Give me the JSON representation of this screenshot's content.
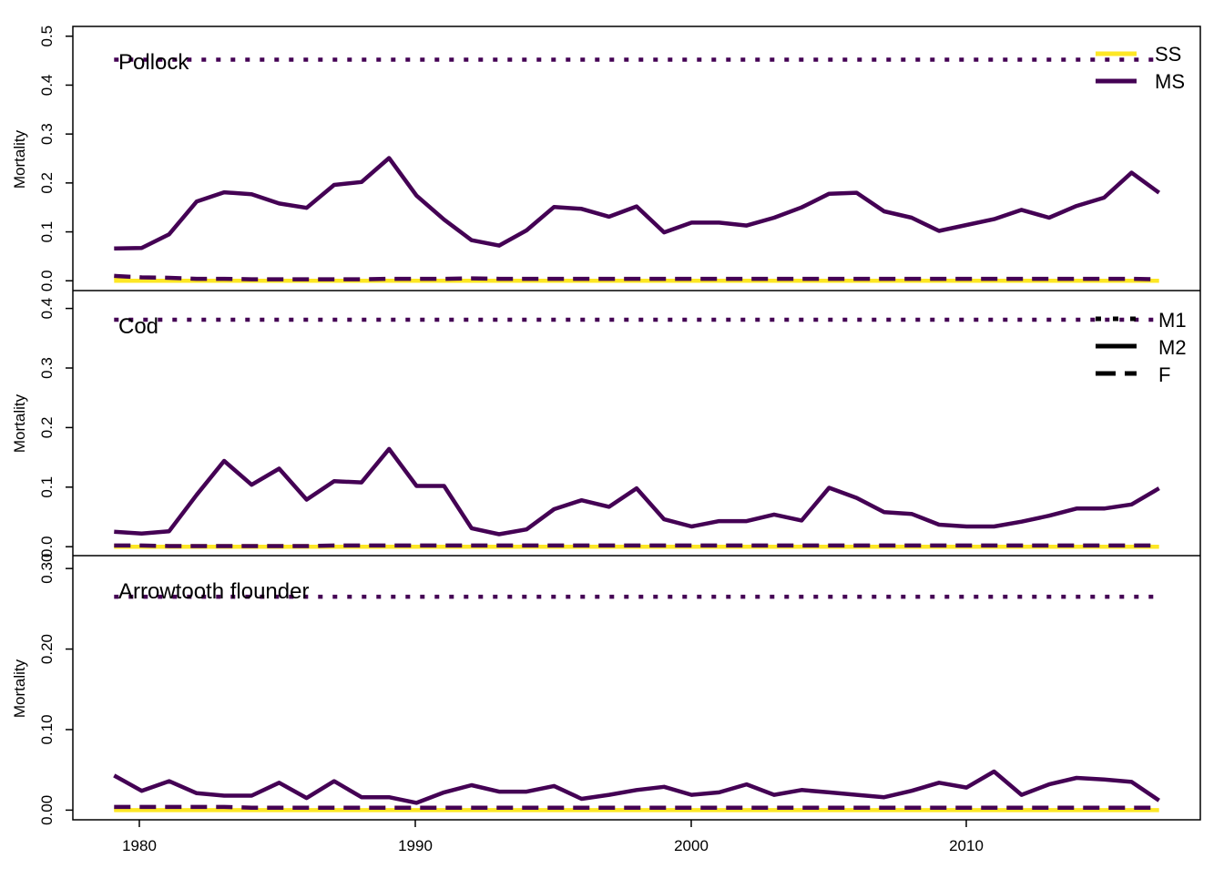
{
  "colors": {
    "ss": "#FDE725",
    "ms": "#440154",
    "frame": "#000000"
  },
  "legend_years": [
    "1980",
    "1990",
    "2000",
    "2010"
  ],
  "legends": [
    {
      "entries": [
        {
          "label": "SS",
          "style": "solid",
          "color": "#FDE725"
        },
        {
          "label": "MS",
          "style": "solid",
          "color": "#440154"
        }
      ]
    },
    {
      "entries": [
        {
          "label": "M1",
          "style": "dotted",
          "color": "#000000"
        },
        {
          "label": "M2",
          "style": "solid",
          "color": "#000000"
        },
        {
          "label": "F",
          "style": "dashed",
          "color": "#000000"
        }
      ]
    }
  ],
  "chart_data": [
    {
      "type": "line",
      "title": "Pollock",
      "ylabel": "Mortality",
      "xlim": [
        1977.5,
        2018.5
      ],
      "ylim": [
        -0.02,
        0.52
      ],
      "yticks": [
        0.0,
        0.1,
        0.2,
        0.3,
        0.4,
        0.5
      ],
      "ytick_labels": [
        "0.0",
        "0.1",
        "0.2",
        "0.3",
        "0.4",
        "0.5"
      ],
      "xticks": [
        1980,
        1990,
        2000,
        2010
      ],
      "show_xticks": false,
      "x": [
        1979,
        1980,
        1981,
        1982,
        1983,
        1984,
        1985,
        1986,
        1987,
        1988,
        1989,
        1990,
        1991,
        1992,
        1993,
        1994,
        1995,
        1996,
        1997,
        1998,
        1999,
        2000,
        2001,
        2002,
        2003,
        2004,
        2005,
        2006,
        2007,
        2008,
        2009,
        2010,
        2011,
        2012,
        2013,
        2014,
        2015,
        2016,
        2017
      ],
      "series": [
        {
          "model": "MS",
          "component": "M1",
          "values": [
            0.452,
            0.452,
            0.452,
            0.452,
            0.452,
            0.452,
            0.452,
            0.452,
            0.452,
            0.452,
            0.452,
            0.452,
            0.452,
            0.452,
            0.452,
            0.452,
            0.452,
            0.452,
            0.452,
            0.452,
            0.452,
            0.452,
            0.452,
            0.452,
            0.452,
            0.452,
            0.452,
            0.452,
            0.452,
            0.452,
            0.452,
            0.452,
            0.452,
            0.452,
            0.452,
            0.452,
            0.452,
            0.452,
            0.452
          ]
        },
        {
          "model": "SS",
          "component": "M2",
          "values": [
            0,
            0,
            0,
            0,
            0,
            0,
            0,
            0,
            0,
            0,
            0,
            0,
            0,
            0,
            0,
            0,
            0,
            0,
            0,
            0,
            0,
            0,
            0,
            0,
            0,
            0,
            0,
            0,
            0,
            0,
            0,
            0,
            0,
            0,
            0,
            0,
            0,
            0,
            0
          ]
        },
        {
          "model": "SS",
          "component": "F",
          "values": [
            0.006,
            0.004,
            0.003,
            0.002,
            0.002,
            0.001,
            0.001,
            0.001,
            0.001,
            0.001,
            0.002,
            0.002,
            0.002,
            0.003,
            0.002,
            0.002,
            0.002,
            0.002,
            0.002,
            0.002,
            0.002,
            0.002,
            0.002,
            0.002,
            0.002,
            0.002,
            0.002,
            0.002,
            0.002,
            0.002,
            0.002,
            0.002,
            0.002,
            0.002,
            0.002,
            0.002,
            0.002,
            0.002,
            0.002
          ]
        },
        {
          "model": "MS",
          "component": "M2",
          "values": [
            0.066,
            0.067,
            0.095,
            0.162,
            0.181,
            0.177,
            0.158,
            0.149,
            0.196,
            0.202,
            0.251,
            0.174,
            0.125,
            0.083,
            0.072,
            0.103,
            0.151,
            0.147,
            0.131,
            0.152,
            0.099,
            0.119,
            0.119,
            0.113,
            0.129,
            0.15,
            0.178,
            0.18,
            0.142,
            0.129,
            0.102,
            0.114,
            0.126,
            0.145,
            0.129,
            0.153,
            0.17,
            0.221,
            0.18
          ]
        },
        {
          "model": "MS",
          "component": "F",
          "values": [
            0.01,
            0.007,
            0.006,
            0.004,
            0.004,
            0.003,
            0.003,
            0.003,
            0.003,
            0.003,
            0.004,
            0.004,
            0.004,
            0.005,
            0.004,
            0.004,
            0.004,
            0.004,
            0.004,
            0.004,
            0.004,
            0.004,
            0.004,
            0.004,
            0.004,
            0.004,
            0.004,
            0.004,
            0.004,
            0.004,
            0.004,
            0.004,
            0.004,
            0.004,
            0.004,
            0.004,
            0.004,
            0.004,
            0.003
          ]
        }
      ]
    },
    {
      "type": "line",
      "title": "Cod",
      "ylabel": "Mortality",
      "xlim": [
        1977.5,
        2018.5
      ],
      "ylim": [
        -0.015,
        0.43
      ],
      "yticks": [
        0.0,
        0.1,
        0.2,
        0.3,
        0.4
      ],
      "ytick_labels": [
        "0.0",
        "0.1",
        "0.2",
        "0.3",
        "0.4"
      ],
      "xticks": [
        1980,
        1990,
        2000,
        2010
      ],
      "show_xticks": false,
      "x": [
        1979,
        1980,
        1981,
        1982,
        1983,
        1984,
        1985,
        1986,
        1987,
        1988,
        1989,
        1990,
        1991,
        1992,
        1993,
        1994,
        1995,
        1996,
        1997,
        1998,
        1999,
        2000,
        2001,
        2002,
        2003,
        2004,
        2005,
        2006,
        2007,
        2008,
        2009,
        2010,
        2011,
        2012,
        2013,
        2014,
        2015,
        2016,
        2017
      ],
      "series": [
        {
          "model": "MS",
          "component": "M1",
          "values": [
            0.381,
            0.381,
            0.381,
            0.381,
            0.381,
            0.381,
            0.381,
            0.381,
            0.381,
            0.381,
            0.381,
            0.381,
            0.381,
            0.381,
            0.381,
            0.381,
            0.381,
            0.381,
            0.381,
            0.381,
            0.381,
            0.381,
            0.381,
            0.381,
            0.381,
            0.381,
            0.381,
            0.381,
            0.381,
            0.381,
            0.381,
            0.381,
            0.381,
            0.381,
            0.381,
            0.381,
            0.381,
            0.381,
            0.381
          ]
        },
        {
          "model": "SS",
          "component": "M2",
          "values": [
            0,
            0,
            0,
            0,
            0,
            0,
            0,
            0,
            0,
            0,
            0,
            0,
            0,
            0,
            0,
            0,
            0,
            0,
            0,
            0,
            0,
            0,
            0,
            0,
            0,
            0,
            0,
            0,
            0,
            0,
            0,
            0,
            0,
            0,
            0,
            0,
            0,
            0,
            0
          ]
        },
        {
          "model": "SS",
          "component": "F",
          "values": [
            0.001,
            0.001,
            0.001,
            0.001,
            0.001,
            0.001,
            0.001,
            0.001,
            0.001,
            0.001,
            0.001,
            0.001,
            0.001,
            0.001,
            0.001,
            0.001,
            0.001,
            0.001,
            0.001,
            0.001,
            0.001,
            0.001,
            0.001,
            0.001,
            0.001,
            0.001,
            0.001,
            0.001,
            0.001,
            0.001,
            0.001,
            0.001,
            0.001,
            0.001,
            0.001,
            0.001,
            0.001,
            0.001,
            0.001
          ]
        },
        {
          "model": "MS",
          "component": "M2",
          "values": [
            0.025,
            0.022,
            0.026,
            0.087,
            0.144,
            0.104,
            0.131,
            0.079,
            0.11,
            0.108,
            0.164,
            0.102,
            0.102,
            0.031,
            0.021,
            0.029,
            0.063,
            0.078,
            0.067,
            0.098,
            0.046,
            0.034,
            0.043,
            0.043,
            0.054,
            0.044,
            0.099,
            0.082,
            0.058,
            0.055,
            0.037,
            0.034,
            0.034,
            0.042,
            0.052,
            0.064,
            0.064,
            0.071,
            0.098
          ]
        },
        {
          "model": "MS",
          "component": "F",
          "values": [
            0.002,
            0.002,
            0.001,
            0.001,
            0.001,
            0.001,
            0.001,
            0.001,
            0.002,
            0.002,
            0.002,
            0.002,
            0.002,
            0.002,
            0.002,
            0.002,
            0.002,
            0.002,
            0.002,
            0.002,
            0.002,
            0.002,
            0.002,
            0.002,
            0.002,
            0.002,
            0.002,
            0.002,
            0.002,
            0.002,
            0.002,
            0.002,
            0.002,
            0.002,
            0.002,
            0.002,
            0.002,
            0.002,
            0.002
          ]
        }
      ]
    },
    {
      "type": "line",
      "title": "Arrowtooth flounder",
      "ylabel": "Mortality",
      "xlim": [
        1977.5,
        2018.5
      ],
      "ylim": [
        -0.012,
        0.316
      ],
      "yticks": [
        0.0,
        0.1,
        0.2,
        0.3
      ],
      "ytick_labels": [
        "0.00",
        "0.10",
        "0.20",
        "0.30"
      ],
      "xticks": [
        1980,
        1990,
        2000,
        2010
      ],
      "show_xticks": true,
      "x": [
        1979,
        1980,
        1981,
        1982,
        1983,
        1984,
        1985,
        1986,
        1987,
        1988,
        1989,
        1990,
        1991,
        1992,
        1993,
        1994,
        1995,
        1996,
        1997,
        1998,
        1999,
        2000,
        2001,
        2002,
        2003,
        2004,
        2005,
        2006,
        2007,
        2008,
        2009,
        2010,
        2011,
        2012,
        2013,
        2014,
        2015,
        2016,
        2017
      ],
      "series": [
        {
          "model": "MS",
          "component": "M1",
          "values": [
            0.265,
            0.265,
            0.265,
            0.265,
            0.265,
            0.265,
            0.265,
            0.265,
            0.265,
            0.265,
            0.265,
            0.265,
            0.265,
            0.265,
            0.265,
            0.265,
            0.265,
            0.265,
            0.265,
            0.265,
            0.265,
            0.265,
            0.265,
            0.265,
            0.265,
            0.265,
            0.265,
            0.265,
            0.265,
            0.265,
            0.265,
            0.265,
            0.265,
            0.265,
            0.265,
            0.265,
            0.265,
            0.265,
            0.265
          ]
        },
        {
          "model": "SS",
          "component": "M2",
          "values": [
            0,
            0,
            0,
            0,
            0,
            0,
            0,
            0,
            0,
            0,
            0,
            0,
            0,
            0,
            0,
            0,
            0,
            0,
            0,
            0,
            0,
            0,
            0,
            0,
            0,
            0,
            0,
            0,
            0,
            0,
            0,
            0,
            0,
            0,
            0,
            0,
            0,
            0,
            0
          ]
        },
        {
          "model": "SS",
          "component": "F",
          "values": [
            0.001,
            0.001,
            0.001,
            0.001,
            0.001,
            0.001,
            0.001,
            0.001,
            0.001,
            0.001,
            0.001,
            0.001,
            0.001,
            0.001,
            0.001,
            0.001,
            0.001,
            0.001,
            0.001,
            0.001,
            0.001,
            0.001,
            0.001,
            0.001,
            0.001,
            0.001,
            0.001,
            0.001,
            0.001,
            0.001,
            0.001,
            0.001,
            0.001,
            0.001,
            0.001,
            0.001,
            0.001,
            0.001,
            0.001
          ]
        },
        {
          "model": "MS",
          "component": "M2",
          "values": [
            0.043,
            0.024,
            0.036,
            0.021,
            0.018,
            0.018,
            0.034,
            0.015,
            0.036,
            0.016,
            0.016,
            0.009,
            0.022,
            0.031,
            0.023,
            0.023,
            0.03,
            0.014,
            0.019,
            0.025,
            0.029,
            0.019,
            0.022,
            0.032,
            0.019,
            0.025,
            0.022,
            0.019,
            0.016,
            0.024,
            0.034,
            0.028,
            0.048,
            0.019,
            0.032,
            0.04,
            0.038,
            0.035,
            0.012
          ]
        },
        {
          "model": "MS",
          "component": "F",
          "values": [
            0.004,
            0.004,
            0.004,
            0.004,
            0.004,
            0.003,
            0.003,
            0.003,
            0.003,
            0.003,
            0.003,
            0.003,
            0.003,
            0.003,
            0.003,
            0.003,
            0.003,
            0.003,
            0.003,
            0.003,
            0.003,
            0.003,
            0.003,
            0.003,
            0.003,
            0.003,
            0.003,
            0.003,
            0.003,
            0.003,
            0.003,
            0.003,
            0.003,
            0.003,
            0.003,
            0.003,
            0.003,
            0.003,
            0.003
          ]
        }
      ]
    }
  ]
}
